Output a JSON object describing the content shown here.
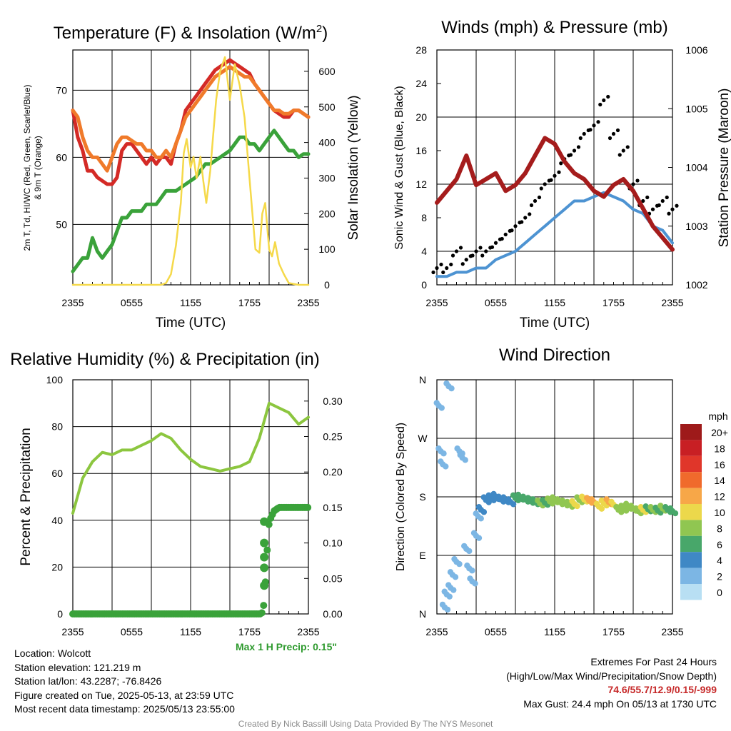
{
  "colors": {
    "temp": "#d42a26",
    "dewpoint": "#3aa23a",
    "temp9m": "#f07a2a",
    "insolation": "#f5d94a",
    "wind": "#4d93d2",
    "gust": "#000000",
    "pressure": "#a51c1c",
    "rh": "#8cc63f",
    "precip": "#3aa23a",
    "precip_label": "#2e9a2e",
    "extremes": "#c62828",
    "credit": "#8a8a8a"
  },
  "chart_data": [
    {
      "id": "temperature",
      "type": "line",
      "title": "Temperature (F) & Insolation (W/m2)",
      "title_main": "Temperature (F) & Insolation (W/m",
      "title_sup": "2",
      "title_end": ")",
      "xlabel": "Time (UTC)",
      "x_ticks": [
        "2355",
        "0555",
        "1155",
        "1755",
        "2355"
      ],
      "ylabel_left_line1": "2m T, Td, HI/WC (Red, Green, Scarlet/Blue)",
      "ylabel_left_line2": "& 9m T (Orange)",
      "ylabel_right": "Solar Insolation (Yellow)",
      "ylim": [
        41,
        76
      ],
      "y_ticks": [
        50,
        60,
        70
      ],
      "y2lim": [
        0,
        660
      ],
      "y2_ticks": [
        0,
        100,
        200,
        300,
        400,
        500,
        600
      ],
      "series": [
        {
          "key": "temp",
          "x": [
            0,
            0.5,
            1,
            1.5,
            2,
            2.5,
            3,
            3.5,
            4,
            4.5,
            5,
            5.5,
            6,
            6.5,
            7,
            7.5,
            8,
            8.5,
            9,
            9.5,
            10,
            10.5,
            11,
            11.5,
            12,
            12.5,
            13,
            13.5,
            14,
            14.5,
            15,
            15.5,
            16,
            16.5,
            17,
            17.5,
            18,
            18.5,
            19,
            19.5,
            20,
            20.5,
            21,
            21.5,
            22,
            22.5,
            23,
            23.5,
            24
          ],
          "values": [
            67,
            63,
            61,
            58,
            58,
            57,
            56.5,
            56,
            56,
            57,
            61,
            62,
            62,
            61,
            60,
            59,
            60,
            59,
            60,
            60,
            59,
            62,
            64,
            67,
            68,
            69,
            70,
            71,
            72,
            73,
            73.5,
            74,
            74.5,
            74,
            73.5,
            73,
            72.5,
            71,
            70,
            69,
            68,
            67,
            66.5,
            66,
            66,
            67,
            67,
            66.5,
            66
          ]
        },
        {
          "key": "temp9m",
          "x": [
            0,
            0.5,
            1,
            1.5,
            2,
            2.5,
            3,
            3.5,
            4,
            4.5,
            5,
            5.5,
            6,
            6.5,
            7,
            7.5,
            8,
            8.5,
            9,
            9.5,
            10,
            10.5,
            11,
            11.5,
            12,
            12.5,
            13,
            13.5,
            14,
            14.5,
            15,
            15.5,
            16,
            16.5,
            17,
            17.5,
            18,
            18.5,
            19,
            19.5,
            20,
            20.5,
            21,
            21.5,
            22,
            22.5,
            23,
            23.5,
            24
          ],
          "values": [
            67,
            66,
            63,
            61,
            60,
            60,
            59,
            58,
            60,
            62,
            63,
            63,
            62.5,
            62,
            62,
            61,
            61,
            60,
            60,
            61,
            60,
            62,
            64,
            66,
            67,
            68,
            69,
            70,
            71,
            72,
            72.5,
            73,
            73.5,
            73,
            72.5,
            72,
            72,
            71,
            70,
            69,
            68,
            67,
            67,
            66.5,
            66.5,
            67,
            67,
            66.5,
            66
          ]
        },
        {
          "key": "dewpoint",
          "x": [
            0,
            0.5,
            1,
            1.5,
            2,
            2.5,
            3,
            3.5,
            4,
            4.5,
            5,
            5.5,
            6,
            6.5,
            7,
            7.5,
            8,
            8.5,
            9,
            9.5,
            10,
            10.5,
            11,
            11.5,
            12,
            12.5,
            13,
            13.5,
            14,
            14.5,
            15,
            15.5,
            16,
            16.5,
            17,
            17.5,
            18,
            18.5,
            19,
            19.5,
            20,
            20.5,
            21,
            21.5,
            22,
            22.5,
            23,
            23.5,
            24
          ],
          "values": [
            43,
            44,
            45,
            45,
            48,
            46,
            45,
            46,
            47,
            49,
            51,
            51,
            52,
            52,
            52,
            53,
            53,
            53,
            54,
            55,
            55,
            55,
            55.5,
            56,
            56.5,
            57,
            58,
            59,
            59,
            59.5,
            60,
            60.5,
            61,
            62,
            63,
            63,
            62,
            62,
            61,
            62,
            63,
            64,
            63,
            62,
            61,
            61,
            60,
            60.5,
            60.5
          ]
        },
        {
          "key": "insolation",
          "axis": "right",
          "x": [
            0,
            1,
            2,
            3,
            4,
            5,
            6,
            7,
            8,
            9,
            9.5,
            10,
            10.5,
            11,
            11.3,
            11.6,
            12,
            12.3,
            12.6,
            13,
            13.3,
            13.6,
            14,
            14.3,
            14.6,
            15,
            15.5,
            16,
            16.5,
            17,
            17.5,
            18,
            18.3,
            18.6,
            19,
            19.3,
            19.6,
            20,
            20.3,
            20.6,
            21,
            21.5,
            22,
            23,
            24
          ],
          "values": [
            0,
            0,
            0,
            0,
            0,
            0,
            0,
            0,
            0,
            0,
            5,
            30,
            110,
            230,
            370,
            410,
            330,
            360,
            300,
            360,
            290,
            230,
            320,
            420,
            520,
            600,
            640,
            520,
            620,
            560,
            470,
            300,
            200,
            100,
            90,
            200,
            230,
            100,
            80,
            120,
            60,
            30,
            5,
            0,
            0
          ]
        }
      ]
    },
    {
      "id": "winds",
      "type": "line",
      "title": "Winds (mph) & Pressure (mb)",
      "xlabel": "Time (UTC)",
      "x_ticks": [
        "2355",
        "0555",
        "1155",
        "1755",
        "2355"
      ],
      "ylabel_left": "Sonic Wind & Gust (Blue, Black)",
      "ylabel_right": "Station Pressure (Maroon)",
      "ylim": [
        0,
        28
      ],
      "y_ticks": [
        0,
        4,
        8,
        12,
        16,
        20,
        24,
        28
      ],
      "y2lim": [
        1002,
        1006
      ],
      "y2_ticks": [
        1002,
        1003,
        1004,
        1005,
        1006
      ],
      "series": [
        {
          "key": "wind",
          "name": "Sonic Wind",
          "x": [
            0,
            1,
            2,
            3,
            4,
            5,
            6,
            7,
            8,
            9,
            10,
            11,
            12,
            13,
            14,
            15,
            16,
            17,
            18,
            19,
            20,
            21,
            22,
            23,
            24
          ],
          "values": [
            1,
            1,
            1.5,
            1.5,
            2,
            2,
            3,
            3.5,
            4,
            5,
            6,
            7,
            8,
            9,
            10,
            10,
            10.5,
            11,
            10.5,
            10,
            9,
            8.5,
            7,
            6.5,
            5
          ]
        },
        {
          "key": "gust",
          "name": "Gust",
          "x": [
            0,
            1,
            2,
            3,
            4,
            5,
            6,
            7,
            8,
            9,
            10,
            11,
            12,
            13,
            14,
            15,
            16,
            17,
            18,
            19,
            20,
            21,
            22,
            23,
            24
          ],
          "values": [
            2,
            2,
            4,
            3,
            4,
            4,
            5,
            6,
            7,
            8,
            10,
            12,
            13,
            15,
            16,
            18,
            19,
            22,
            18,
            16,
            12,
            10,
            9,
            10,
            9
          ]
        },
        {
          "key": "pressure",
          "axis": "right",
          "name": "Station Pressure",
          "x": [
            0,
            1,
            2,
            3,
            4,
            5,
            6,
            7,
            8,
            9,
            10,
            11,
            12,
            13,
            14,
            15,
            16,
            17,
            18,
            19,
            20,
            21,
            22,
            23,
            24
          ],
          "values": [
            1003.4,
            1003.6,
            1003.8,
            1004.2,
            1003.7,
            1003.8,
            1003.9,
            1003.6,
            1003.7,
            1003.9,
            1004.2,
            1004.5,
            1004.4,
            1004.1,
            1003.9,
            1003.8,
            1003.6,
            1003.5,
            1003.7,
            1003.8,
            1003.6,
            1003.3,
            1003,
            1002.8,
            1002.6
          ]
        }
      ]
    },
    {
      "id": "humidity",
      "type": "line",
      "title": "Relative Humidity (%) & Precipitation (in)",
      "x_ticks": [
        "2355",
        "0555",
        "1155",
        "1755",
        "2355"
      ],
      "ylabel_left": "Percent & Precipitation",
      "ylim": [
        0,
        100
      ],
      "y_ticks": [
        0,
        20,
        40,
        60,
        80,
        100
      ],
      "y2lim": [
        0,
        0.33
      ],
      "y2_ticks": [
        "0.00",
        "0.05",
        "0.10",
        "0.15",
        "0.20",
        "0.25",
        "0.30"
      ],
      "series": [
        {
          "key": "rh",
          "name": "Relative Humidity",
          "x": [
            0,
            1,
            2,
            3,
            4,
            5,
            6,
            7,
            8,
            9,
            10,
            11,
            12,
            13,
            14,
            15,
            16,
            17,
            18,
            19,
            20,
            21,
            22,
            23,
            24
          ],
          "values": [
            43,
            58,
            65,
            69,
            68,
            70,
            70,
            72,
            74,
            77,
            75,
            70,
            66,
            63,
            62,
            61,
            62,
            63,
            65,
            75,
            90,
            88,
            86,
            81,
            84
          ]
        },
        {
          "key": "precip",
          "axis": "right",
          "name": "Precipitation",
          "x": [
            0,
            4,
            8,
            12,
            16,
            19.2,
            19.4,
            19.6,
            19.8,
            20,
            20.5,
            21,
            22,
            23,
            24
          ],
          "values": [
            0,
            0,
            0,
            0,
            0,
            0,
            0.005,
            0.04,
            0.09,
            0.13,
            0.145,
            0.15,
            0.15,
            0.15,
            0.15
          ]
        }
      ],
      "max_precip_label": "Max 1 H Precip: 0.15\""
    },
    {
      "id": "direction",
      "type": "scatter",
      "title": "Wind Direction",
      "x_ticks": [
        "2355",
        "0555",
        "1155",
        "1755",
        "2355"
      ],
      "ylabel_left": "Direction (Colored By Speed)",
      "y_ticks": [
        "N",
        "E",
        "S",
        "W",
        "N"
      ],
      "ylim": [
        0,
        360
      ],
      "x": [
        0.2,
        0.4,
        0.6,
        0.8,
        1.0,
        1.2,
        1.4,
        1.6,
        2,
        2.3,
        2.6,
        3,
        3.3,
        3.6,
        4,
        4.2,
        4.5,
        5,
        5.5,
        6,
        6.5,
        7,
        7.5,
        8,
        8.5,
        9,
        9.5,
        10,
        10.5,
        11,
        11.5,
        12,
        12.5,
        13,
        13.5,
        14,
        14.5,
        15,
        15.5,
        16,
        16.5,
        17,
        17.5,
        18,
        18.5,
        19,
        19.5,
        20,
        20.5,
        21,
        21.5,
        22,
        22.5,
        23,
        23.5,
        24
      ],
      "values": [
        320,
        250,
        230,
        10,
        30,
        350,
        40,
        60,
        80,
        250,
        240,
        100,
        70,
        50,
        120,
        150,
        160,
        175,
        178,
        180,
        176,
        175,
        172,
        178,
        179,
        176,
        174,
        172,
        170,
        171,
        173,
        175,
        172,
        170,
        168,
        169,
        175,
        176,
        174,
        172,
        165,
        170,
        172,
        168,
        160,
        162,
        165,
        162,
        158,
        160,
        161,
        160,
        159,
        162,
        160,
        158
      ],
      "speeds": [
        1,
        1,
        1,
        1,
        1,
        1,
        1,
        1,
        1,
        1,
        1,
        1,
        1,
        1,
        2,
        2,
        3,
        3,
        4,
        4,
        3,
        4,
        4,
        5,
        5,
        6,
        6,
        6,
        7,
        6,
        7,
        7,
        8,
        7,
        8,
        9,
        8,
        10,
        11,
        12,
        10,
        10,
        11,
        9,
        8,
        7,
        8,
        7,
        8,
        9,
        6,
        7,
        6,
        7,
        6,
        5
      ],
      "legend_title": "mph",
      "legend_labels": [
        "20+",
        "18",
        "16",
        "14",
        "12",
        "10",
        "8",
        "6",
        "4",
        "2",
        "0"
      ],
      "legend_colors": [
        "#9e1a1a",
        "#c81f24",
        "#e0362a",
        "#f06a2c",
        "#f7a748",
        "#ecd84b",
        "#90c651",
        "#48a76a",
        "#3f88c5",
        "#7cb6e4",
        "#b8dff3"
      ]
    }
  ],
  "info": {
    "location": "Location: Wolcott",
    "elevation": "Station elevation: 121.219 m",
    "latlon": "Station lat/lon: 43.2287; -76.8426",
    "created": "Figure created on Tue, 2025-05-13, at 23:59 UTC",
    "recent": "Most recent data timestamp: 2025/05/13 23:55:00",
    "extremes_title": "Extremes For Past 24 Hours",
    "extremes_sub": "(High/Low/Max Wind/Precipitation/Snow Depth)",
    "extremes_values": "74.6/55.7/12.9/0.15/-999",
    "max_gust": "Max Gust: 24.4 mph On 05/13 at 1730 UTC",
    "credit": "Created By Nick Bassill Using Data Provided By The NYS Mesonet"
  }
}
